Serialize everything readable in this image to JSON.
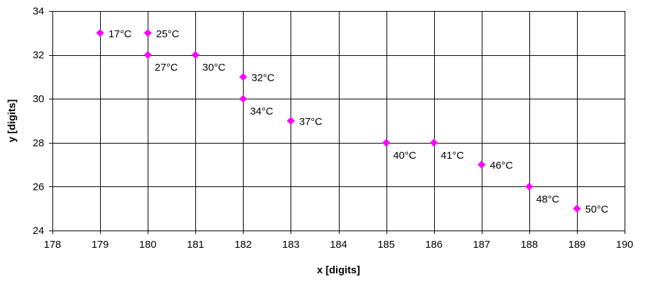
{
  "chart_data": {
    "type": "scatter",
    "title": "",
    "xlabel": "x [digits]",
    "ylabel": "y [digits]",
    "xlim": [
      178,
      190
    ],
    "ylim": [
      24,
      34
    ],
    "xticks": [
      178,
      179,
      180,
      181,
      182,
      183,
      184,
      185,
      186,
      187,
      188,
      189,
      190
    ],
    "yticks": [
      24,
      26,
      28,
      30,
      32,
      34
    ],
    "grid": true,
    "marker": "diamond",
    "marker_color": "#FF00FF",
    "points": [
      {
        "x": 179,
        "y": 33,
        "label": "17°C",
        "label_pos": "right"
      },
      {
        "x": 180,
        "y": 33,
        "label": "25°C",
        "label_pos": "right"
      },
      {
        "x": 180,
        "y": 32,
        "label": "27°C",
        "label_pos": "below-right"
      },
      {
        "x": 181,
        "y": 32,
        "label": "30°C",
        "label_pos": "below-right"
      },
      {
        "x": 182,
        "y": 31,
        "label": "32°C",
        "label_pos": "right"
      },
      {
        "x": 182,
        "y": 30,
        "label": "34°C",
        "label_pos": "below-right"
      },
      {
        "x": 183,
        "y": 29,
        "label": "37°C",
        "label_pos": "right"
      },
      {
        "x": 185,
        "y": 28,
        "label": "40°C",
        "label_pos": "below-right"
      },
      {
        "x": 186,
        "y": 28,
        "label": "41°C",
        "label_pos": "below-right"
      },
      {
        "x": 187,
        "y": 27,
        "label": "46°C",
        "label_pos": "right"
      },
      {
        "x": 188,
        "y": 26,
        "label": "48°C",
        "label_pos": "below-right"
      },
      {
        "x": 189,
        "y": 25,
        "label": "50°C",
        "label_pos": "right"
      }
    ]
  }
}
